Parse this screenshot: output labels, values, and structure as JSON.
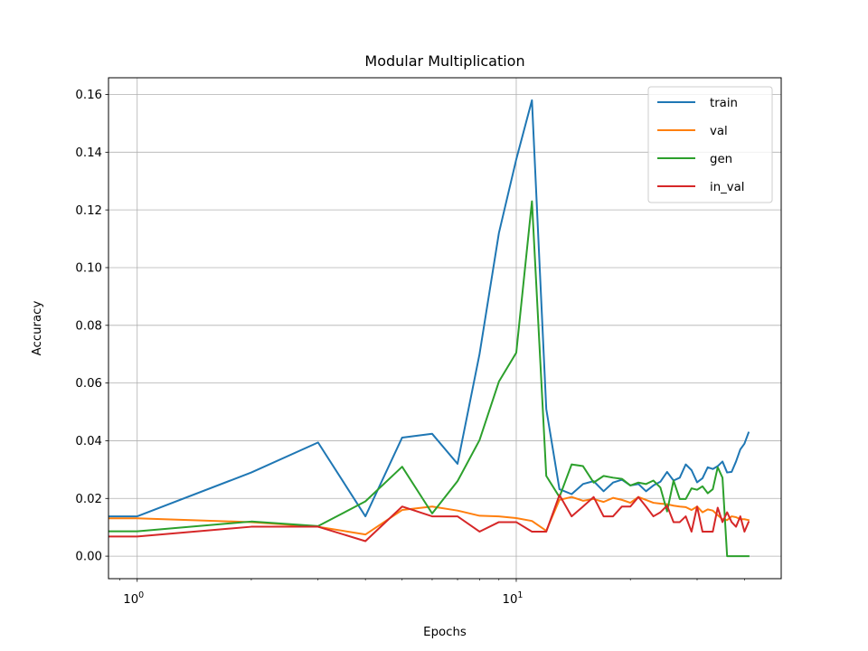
{
  "chart_data": {
    "type": "line",
    "title": "Modular Multiplication",
    "xlabel": "Epochs",
    "ylabel": "Accuracy",
    "xscale": "log",
    "xlim": [
      0.84,
      50
    ],
    "ylim": [
      -0.0078,
      0.1658
    ],
    "yticks": [
      "0.00",
      "0.02",
      "0.04",
      "0.06",
      "0.08",
      "0.10",
      "0.12",
      "0.14",
      "0.16"
    ],
    "xticks": [
      {
        "base": "10",
        "exp": "0",
        "value": 1
      },
      {
        "base": "10",
        "exp": "1",
        "value": 10
      }
    ],
    "grid": true,
    "legend_position": "top-right",
    "series": [
      {
        "name": "train",
        "color": "#1f77b4",
        "points": [
          [
            0.84,
            0.0138
          ],
          [
            1,
            0.0138
          ],
          [
            2,
            0.029
          ],
          [
            3,
            0.0394
          ],
          [
            4,
            0.0138
          ],
          [
            5,
            0.0411
          ],
          [
            6,
            0.0424
          ],
          [
            7,
            0.032
          ],
          [
            8,
            0.07
          ],
          [
            9,
            0.112
          ],
          [
            10,
            0.1375
          ],
          [
            11,
            0.158
          ],
          [
            12,
            0.051
          ],
          [
            13,
            0.0232
          ],
          [
            14,
            0.0215
          ],
          [
            15,
            0.025
          ],
          [
            16,
            0.026
          ],
          [
            17,
            0.0225
          ],
          [
            18,
            0.0255
          ],
          [
            19,
            0.0265
          ],
          [
            20,
            0.0245
          ],
          [
            21,
            0.025
          ],
          [
            22,
            0.0225
          ],
          [
            23,
            0.0245
          ],
          [
            24,
            0.0258
          ],
          [
            25,
            0.0292
          ],
          [
            26,
            0.0262
          ],
          [
            27,
            0.0272
          ],
          [
            28,
            0.0318
          ],
          [
            29,
            0.0298
          ],
          [
            30,
            0.0256
          ],
          [
            31,
            0.027
          ],
          [
            32,
            0.0308
          ],
          [
            33,
            0.0302
          ],
          [
            34,
            0.0312
          ],
          [
            35,
            0.0328
          ],
          [
            36,
            0.029
          ],
          [
            37,
            0.0292
          ],
          [
            38,
            0.0328
          ],
          [
            39,
            0.037
          ],
          [
            40,
            0.039
          ],
          [
            41,
            0.0428
          ]
        ]
      },
      {
        "name": "val",
        "color": "#ff7f0e",
        "points": [
          [
            0.84,
            0.0131
          ],
          [
            1,
            0.0131
          ],
          [
            2,
            0.0118
          ],
          [
            3,
            0.0102
          ],
          [
            4,
            0.0075
          ],
          [
            5,
            0.016
          ],
          [
            6,
            0.0172
          ],
          [
            7,
            0.0158
          ],
          [
            8,
            0.014
          ],
          [
            9,
            0.0138
          ],
          [
            10,
            0.0132
          ],
          [
            11,
            0.0122
          ],
          [
            12,
            0.0088
          ],
          [
            13,
            0.0195
          ],
          [
            14,
            0.0205
          ],
          [
            15,
            0.0192
          ],
          [
            16,
            0.0198
          ],
          [
            17,
            0.0188
          ],
          [
            18,
            0.0202
          ],
          [
            19,
            0.0195
          ],
          [
            20,
            0.0185
          ],
          [
            21,
            0.0205
          ],
          [
            22,
            0.0195
          ],
          [
            23,
            0.0185
          ],
          [
            24,
            0.0182
          ],
          [
            25,
            0.018
          ],
          [
            26,
            0.0175
          ],
          [
            27,
            0.0172
          ],
          [
            28,
            0.017
          ],
          [
            29,
            0.016
          ],
          [
            30,
            0.0172
          ],
          [
            31,
            0.0152
          ],
          [
            32,
            0.0162
          ],
          [
            33,
            0.0158
          ],
          [
            34,
            0.0142
          ],
          [
            35,
            0.0128
          ],
          [
            36,
            0.0125
          ],
          [
            37,
            0.0138
          ],
          [
            38,
            0.0135
          ],
          [
            39,
            0.0128
          ],
          [
            40,
            0.0128
          ],
          [
            41,
            0.0125
          ]
        ]
      },
      {
        "name": "gen",
        "color": "#2ca02c",
        "points": [
          [
            0.84,
            0.0086
          ],
          [
            1,
            0.0086
          ],
          [
            2,
            0.012
          ],
          [
            3,
            0.0104
          ],
          [
            4,
            0.019
          ],
          [
            5,
            0.031
          ],
          [
            6,
            0.0148
          ],
          [
            7,
            0.026
          ],
          [
            8,
            0.0402
          ],
          [
            9,
            0.0605
          ],
          [
            10,
            0.0705
          ],
          [
            11,
            0.123
          ],
          [
            12,
            0.0278
          ],
          [
            13,
            0.0205
          ],
          [
            14,
            0.0318
          ],
          [
            15,
            0.0312
          ],
          [
            16,
            0.0255
          ],
          [
            17,
            0.0278
          ],
          [
            18,
            0.0272
          ],
          [
            19,
            0.0268
          ],
          [
            20,
            0.0245
          ],
          [
            21,
            0.0255
          ],
          [
            22,
            0.025
          ],
          [
            23,
            0.0262
          ],
          [
            24,
            0.0238
          ],
          [
            25,
            0.0155
          ],
          [
            26,
            0.0262
          ],
          [
            27,
            0.0198
          ],
          [
            28,
            0.0198
          ],
          [
            29,
            0.0235
          ],
          [
            30,
            0.023
          ],
          [
            31,
            0.0242
          ],
          [
            32,
            0.0218
          ],
          [
            33,
            0.0232
          ],
          [
            34,
            0.0308
          ],
          [
            35,
            0.0272
          ],
          [
            36,
            0.0
          ],
          [
            37,
            0.0
          ],
          [
            38,
            0.0
          ],
          [
            39,
            0.0
          ],
          [
            40,
            0.0
          ],
          [
            41,
            0.0
          ]
        ]
      },
      {
        "name": "in_val",
        "color": "#d62728",
        "points": [
          [
            0.84,
            0.0068
          ],
          [
            1,
            0.0068
          ],
          [
            2,
            0.0102
          ],
          [
            3,
            0.0102
          ],
          [
            4,
            0.0052
          ],
          [
            5,
            0.0172
          ],
          [
            6,
            0.0138
          ],
          [
            7,
            0.0138
          ],
          [
            8,
            0.0085
          ],
          [
            9,
            0.0118
          ],
          [
            10,
            0.0118
          ],
          [
            11,
            0.0085
          ],
          [
            12,
            0.0085
          ],
          [
            13,
            0.0212
          ],
          [
            14,
            0.0138
          ],
          [
            15,
            0.0172
          ],
          [
            16,
            0.0205
          ],
          [
            17,
            0.0138
          ],
          [
            18,
            0.0138
          ],
          [
            19,
            0.0172
          ],
          [
            20,
            0.0172
          ],
          [
            21,
            0.0205
          ],
          [
            22,
            0.0172
          ],
          [
            23,
            0.0138
          ],
          [
            24,
            0.0152
          ],
          [
            25,
            0.0175
          ],
          [
            26,
            0.0118
          ],
          [
            27,
            0.0118
          ],
          [
            28,
            0.0138
          ],
          [
            29,
            0.0085
          ],
          [
            30,
            0.0172
          ],
          [
            31,
            0.0085
          ],
          [
            32,
            0.0085
          ],
          [
            33,
            0.0085
          ],
          [
            34,
            0.0168
          ],
          [
            35,
            0.0118
          ],
          [
            36,
            0.0152
          ],
          [
            37,
            0.0118
          ],
          [
            38,
            0.0102
          ],
          [
            39,
            0.0138
          ],
          [
            40,
            0.0085
          ],
          [
            41,
            0.0118
          ]
        ]
      }
    ]
  }
}
